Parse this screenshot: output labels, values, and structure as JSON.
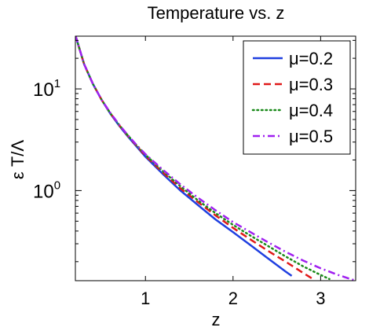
{
  "chart_data": {
    "type": "line",
    "title": "Temperature vs. z",
    "xlabel": "z",
    "ylabel": "ε T/Λ",
    "xlim": [
      0.2,
      3.4
    ],
    "ylim": [
      0.13,
      33
    ],
    "yscale": "log",
    "grid": false,
    "legend_position": "top-right",
    "x_ticks": [
      {
        "value": 1,
        "label": "1"
      },
      {
        "value": 2,
        "label": "2"
      },
      {
        "value": 3,
        "label": "3"
      }
    ],
    "y_ticks": [
      {
        "value": 1,
        "base": "10",
        "exp": "0"
      },
      {
        "value": 10,
        "base": "10",
        "exp": "1"
      }
    ],
    "series": [
      {
        "name": "μ=0.2",
        "color": "#1f3fe0",
        "dash": "solid",
        "points": [
          [
            0.2,
            33.7
          ],
          [
            0.3,
            17.5
          ],
          [
            0.4,
            11.2
          ],
          [
            0.5,
            7.8
          ],
          [
            0.6,
            5.7
          ],
          [
            0.7,
            4.35
          ],
          [
            0.8,
            3.4
          ],
          [
            0.9,
            2.7
          ],
          [
            1.0,
            2.15
          ],
          [
            1.2,
            1.45
          ],
          [
            1.4,
            1.0
          ],
          [
            1.6,
            0.72
          ],
          [
            1.8,
            0.52
          ],
          [
            2.0,
            0.39
          ],
          [
            2.2,
            0.29
          ],
          [
            2.4,
            0.215
          ],
          [
            2.6,
            0.16
          ],
          [
            2.67,
            0.145
          ]
        ]
      },
      {
        "name": "μ=0.3",
        "color": "#e01919",
        "dash": "dashed",
        "points": [
          [
            0.2,
            33.7
          ],
          [
            0.3,
            17.5
          ],
          [
            0.4,
            11.2
          ],
          [
            0.5,
            7.8
          ],
          [
            0.6,
            5.75
          ],
          [
            0.7,
            4.4
          ],
          [
            0.8,
            3.45
          ],
          [
            0.9,
            2.75
          ],
          [
            1.0,
            2.2
          ],
          [
            1.2,
            1.5
          ],
          [
            1.4,
            1.05
          ],
          [
            1.6,
            0.77
          ],
          [
            1.8,
            0.57
          ],
          [
            2.0,
            0.43
          ],
          [
            2.2,
            0.33
          ],
          [
            2.4,
            0.255
          ],
          [
            2.6,
            0.2
          ],
          [
            2.8,
            0.155
          ],
          [
            2.9,
            0.137
          ]
        ]
      },
      {
        "name": "μ=0.4",
        "color": "#1a8a1a",
        "dash": "dotted",
        "points": [
          [
            0.2,
            33.7
          ],
          [
            0.3,
            17.5
          ],
          [
            0.4,
            11.2
          ],
          [
            0.5,
            7.8
          ],
          [
            0.6,
            5.75
          ],
          [
            0.7,
            4.42
          ],
          [
            0.8,
            3.48
          ],
          [
            0.9,
            2.78
          ],
          [
            1.0,
            2.25
          ],
          [
            1.2,
            1.55
          ],
          [
            1.4,
            1.1
          ],
          [
            1.6,
            0.8
          ],
          [
            1.8,
            0.6
          ],
          [
            2.0,
            0.46
          ],
          [
            2.2,
            0.36
          ],
          [
            2.4,
            0.285
          ],
          [
            2.6,
            0.225
          ],
          [
            2.8,
            0.18
          ],
          [
            3.0,
            0.148
          ],
          [
            3.1,
            0.135
          ]
        ]
      },
      {
        "name": "μ=0.5",
        "color": "#a020f0",
        "dash": "dashdot",
        "points": [
          [
            0.2,
            33.7
          ],
          [
            0.3,
            17.5
          ],
          [
            0.4,
            11.2
          ],
          [
            0.5,
            7.8
          ],
          [
            0.6,
            5.8
          ],
          [
            0.7,
            4.45
          ],
          [
            0.8,
            3.5
          ],
          [
            0.9,
            2.8
          ],
          [
            1.0,
            2.28
          ],
          [
            1.2,
            1.6
          ],
          [
            1.4,
            1.15
          ],
          [
            1.6,
            0.85
          ],
          [
            1.8,
            0.64
          ],
          [
            2.0,
            0.49
          ],
          [
            2.2,
            0.39
          ],
          [
            2.4,
            0.31
          ],
          [
            2.6,
            0.25
          ],
          [
            2.8,
            0.205
          ],
          [
            3.0,
            0.172
          ],
          [
            3.2,
            0.148
          ],
          [
            3.4,
            0.13
          ]
        ]
      }
    ]
  }
}
